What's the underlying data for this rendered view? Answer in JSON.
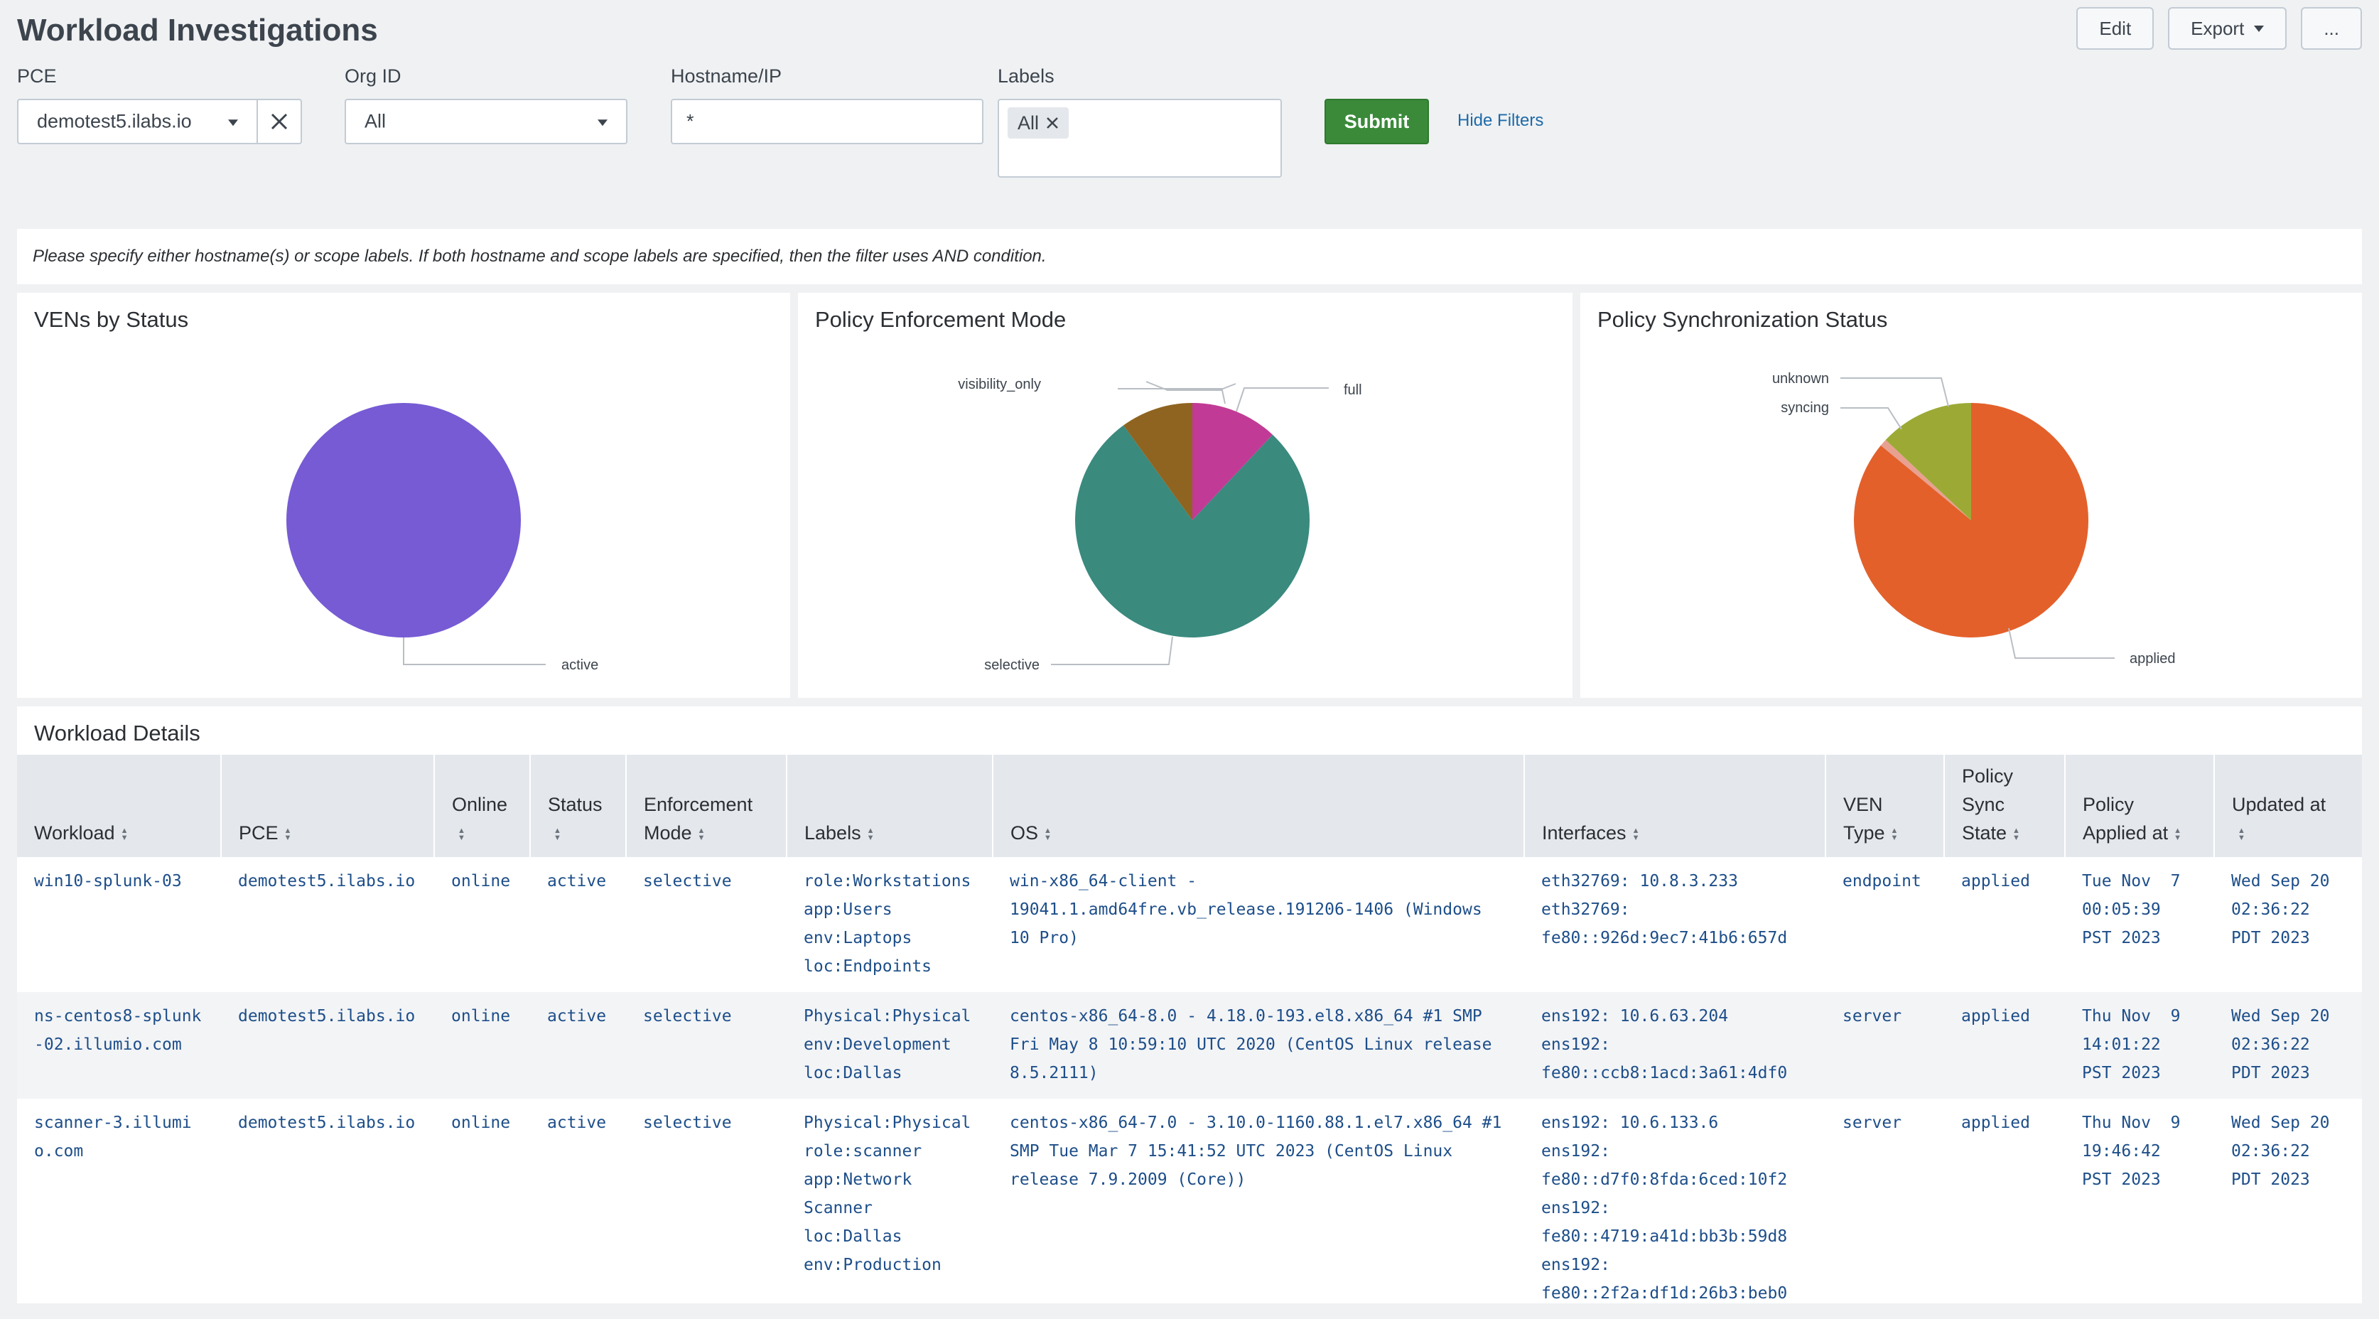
{
  "title": "Workload Investigations",
  "actions": {
    "edit": "Edit",
    "export": "Export",
    "more": "..."
  },
  "filters": {
    "pce": {
      "label": "PCE",
      "value": "demotest5.ilabs.io"
    },
    "org": {
      "label": "Org ID",
      "value": "All"
    },
    "host": {
      "label": "Hostname/IP",
      "value": "*"
    },
    "labels": {
      "label": "Labels",
      "chip": "All"
    },
    "submit": "Submit",
    "hide": "Hide Filters"
  },
  "note": "Please specify either hostname(s) or scope labels. If both hostname and scope labels are specified, then the filter uses AND condition.",
  "colors": {
    "active": "#765bd4",
    "selective": "#3a8a7e",
    "full": "#c13b96",
    "visibility_only": "#8f6420",
    "applied": "#e3602b",
    "unknown": "#9caa35",
    "syncing": "#e8a090",
    "submit": "#3a8a3a"
  },
  "chart_data": [
    {
      "type": "pie",
      "title": "VENs by Status",
      "labels": [
        "active"
      ],
      "values": [
        100
      ]
    },
    {
      "type": "pie",
      "title": "Policy Enforcement Mode",
      "labels": [
        "full",
        "selective",
        "visibility_only"
      ],
      "values": [
        12,
        78,
        10
      ]
    },
    {
      "type": "pie",
      "title": "Policy Synchronization Status",
      "labels": [
        "applied",
        "syncing",
        "unknown"
      ],
      "values": [
        86,
        1,
        13
      ]
    }
  ],
  "details": {
    "title": "Workload Details",
    "columns": [
      [
        "Workload"
      ],
      [
        "PCE"
      ],
      [
        "Online"
      ],
      [
        "Status"
      ],
      [
        "Enforcement",
        "Mode"
      ],
      [
        "Labels"
      ],
      [
        "OS"
      ],
      [
        "Interfaces"
      ],
      [
        "VEN",
        "Type"
      ],
      [
        "Policy",
        "Sync",
        "State"
      ],
      [
        "Policy",
        "Applied at"
      ],
      [
        "Updated at"
      ]
    ],
    "rows": [
      {
        "workload": "win10-splunk-03",
        "pce": "demotest5.ilabs.io",
        "online": "online",
        "status": "active",
        "mode": "selective",
        "labels": [
          "role:Workstations",
          "app:Users",
          "env:Laptops",
          "loc:Endpoints"
        ],
        "os": "win-x86_64-client - 19041.1.amd64fre.vb_release.191206-1406 (Windows 10 Pro)",
        "interfaces": [
          "eth32769: 10.8.3.233",
          "eth32769:",
          "fe80::926d:9ec7:41b6:657d"
        ],
        "ven": "endpoint",
        "sync": "applied",
        "applied_at": [
          "Tue Nov  7",
          "00:05:39",
          "PST 2023"
        ],
        "updated_at": [
          "Wed Sep 20",
          "02:36:22",
          "PDT 2023"
        ]
      },
      {
        "workload": "ns-centos8-splunk-02.illumio.com",
        "pce": "demotest5.ilabs.io",
        "online": "online",
        "status": "active",
        "mode": "selective",
        "labels": [
          "Physical:Physical",
          "env:Development",
          "loc:Dallas"
        ],
        "os": "centos-x86_64-8.0 - 4.18.0-193.el8.x86_64 #1 SMP Fri May 8 10:59:10 UTC 2020 (CentOS Linux release 8.5.2111)",
        "interfaces": [
          "ens192: 10.6.63.204",
          "ens192:",
          "fe80::ccb8:1acd:3a61:4df0"
        ],
        "ven": "server",
        "sync": "applied",
        "applied_at": [
          "Thu Nov  9",
          "14:01:22",
          "PST 2023"
        ],
        "updated_at": [
          "Wed Sep 20",
          "02:36:22",
          "PDT 2023"
        ]
      },
      {
        "workload": "scanner-3.illumio.com",
        "pce": "demotest5.ilabs.io",
        "online": "online",
        "status": "active",
        "mode": "selective",
        "labels": [
          "Physical:Physical",
          "role:scanner",
          "app:Network",
          "Scanner",
          "loc:Dallas",
          "env:Production"
        ],
        "os": "centos-x86_64-7.0 - 3.10.0-1160.88.1.el7.x86_64 #1 SMP Tue Mar 7 15:41:52 UTC 2023 (CentOS Linux release 7.9.2009 (Core))",
        "interfaces": [
          "ens192: 10.6.133.6",
          "ens192:",
          "fe80::d7f0:8fda:6ced:10f2",
          "ens192:",
          "fe80::4719:a41d:bb3b:59d8",
          "ens192:",
          "fe80::2f2a:df1d:26b3:beb0"
        ],
        "ven": "server",
        "sync": "applied",
        "applied_at": [
          "Thu Nov  9",
          "19:46:42",
          "PST 2023"
        ],
        "updated_at": [
          "Wed Sep 20",
          "02:36:22",
          "PDT 2023"
        ]
      }
    ]
  }
}
